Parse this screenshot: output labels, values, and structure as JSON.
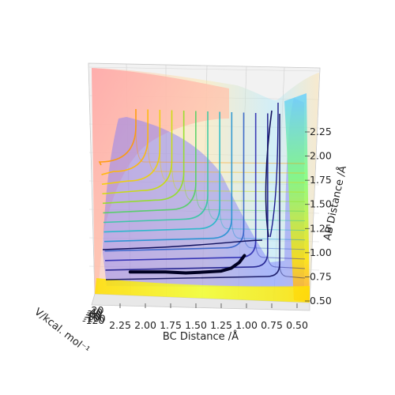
{
  "chart_data": {
    "type": "surface3d",
    "title": "",
    "xlabel": "BC Distance /Å",
    "ylabel": "AB Distance /Å",
    "zlabel": "V/kcal. mol⁻¹",
    "x_range": [
      0.5,
      2.4
    ],
    "y_range": [
      0.5,
      2.4
    ],
    "x_ticks": [
      "2.25",
      "2.00",
      "1.75",
      "1.50",
      "1.25",
      "1.00",
      "0.75",
      "0.50"
    ],
    "y_ticks": [
      "0.50",
      "0.75",
      "1.00",
      "1.25",
      "1.50",
      "1.75",
      "2.00",
      "2.25"
    ],
    "z_ticks": [
      "-120",
      "-100",
      "-80",
      "-60",
      "-40",
      "-20"
    ],
    "colormap": "jet",
    "surface_alpha": 0.35,
    "grid": true,
    "trajectory": {
      "color": "#000022",
      "points": [
        [
          2.15,
          0.8
        ],
        [
          2.0,
          0.8
        ],
        [
          1.8,
          0.8
        ],
        [
          1.6,
          0.79
        ],
        [
          1.4,
          0.8
        ],
        [
          1.25,
          0.81
        ],
        [
          1.15,
          0.84
        ],
        [
          1.07,
          0.9
        ],
        [
          1.02,
          0.97
        ]
      ]
    }
  }
}
